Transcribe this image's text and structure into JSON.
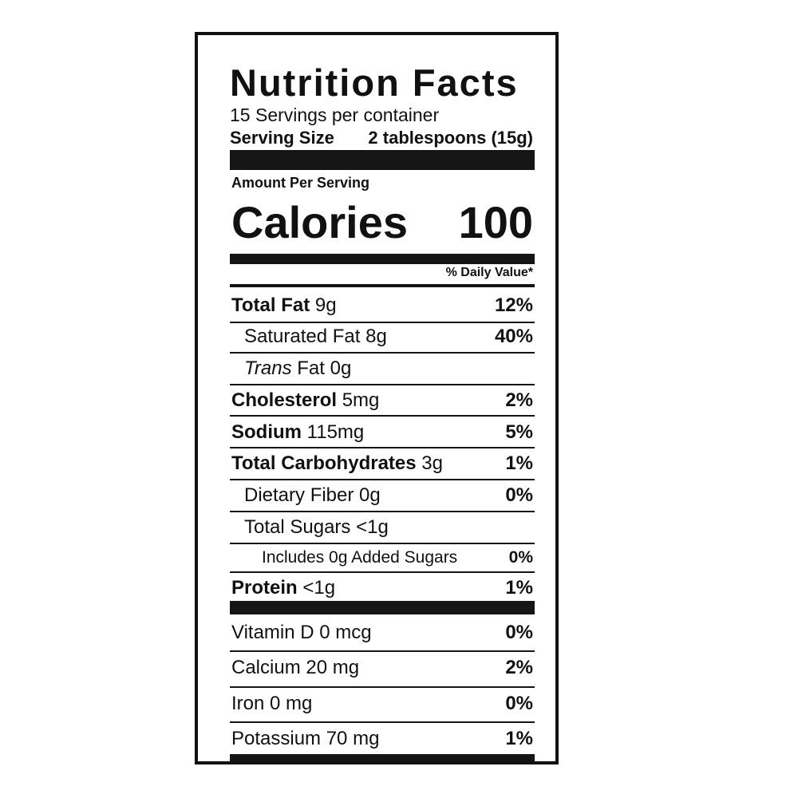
{
  "header": {
    "title": "Nutrition Facts",
    "servings": "15 Servings per container",
    "serving_size_label": "Serving Size",
    "serving_size_value": "2 tablespoons (15g)"
  },
  "calories": {
    "amount_per_serving": "Amount Per Serving",
    "label": "Calories",
    "value": "100",
    "daily_value_header": "% Daily Value*"
  },
  "nutrients": [
    {
      "name": "Total Fat",
      "amount": "9g",
      "daily_value": "12%"
    },
    {
      "name": "Saturated Fat",
      "amount": "8g",
      "daily_value": "40%"
    },
    {
      "name_italic": "Trans",
      "name": "Fat",
      "amount": "0g"
    },
    {
      "name": "Cholesterol",
      "amount": "5mg",
      "daily_value": "2%"
    },
    {
      "name": "Sodium",
      "amount": "115mg",
      "daily_value": "5%"
    },
    {
      "name": "Total Carbohydrates",
      "amount": "3g",
      "daily_value": "1%"
    },
    {
      "name": "Dietary Fiber",
      "amount": "0g",
      "daily_value": "0%"
    },
    {
      "name": "Total Sugars",
      "amount": "<1g"
    },
    {
      "name": "Includes 0g Added Sugars",
      "daily_value": "0%"
    },
    {
      "name": "Protein",
      "amount": "<1g",
      "daily_value": "1%"
    }
  ],
  "vitamins": [
    {
      "name": "Vitamin D 0 mcg",
      "daily_value": "0%"
    },
    {
      "name": "Calcium 20 mg",
      "daily_value": "2%"
    },
    {
      "name": "Iron 0 mg",
      "daily_value": "0%"
    },
    {
      "name": "Potassium 70 mg",
      "daily_value": "1%"
    }
  ]
}
